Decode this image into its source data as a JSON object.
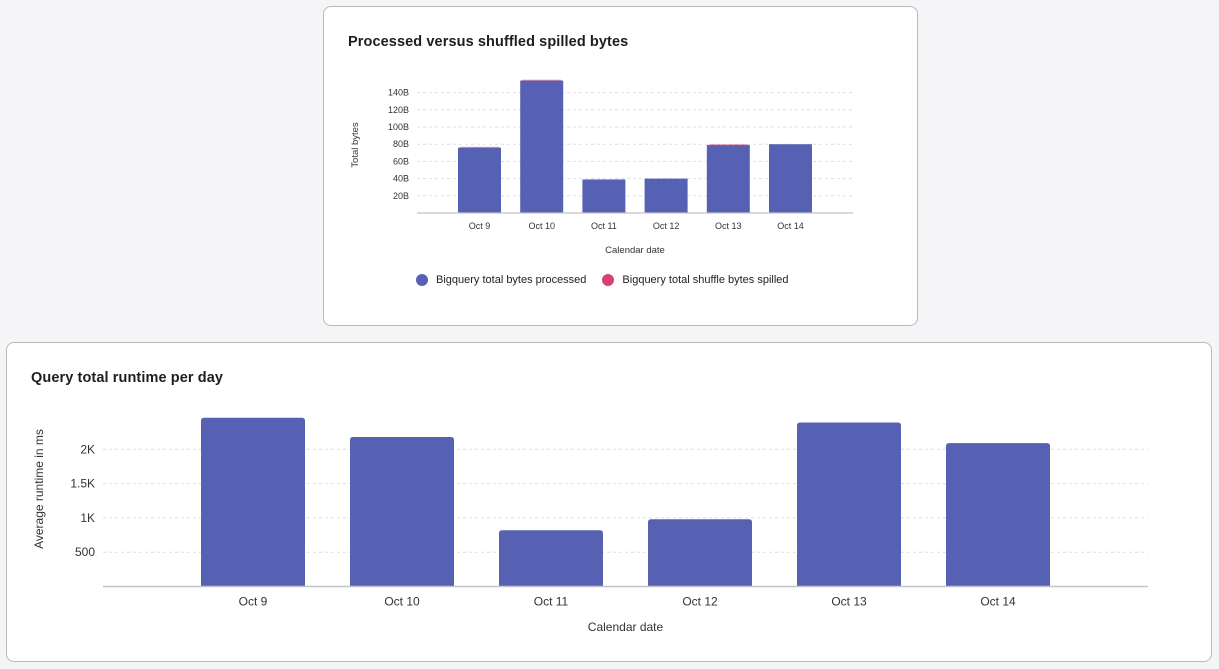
{
  "colors": {
    "processed": "#5661b3",
    "spilled": "#d6416f",
    "grid": "#dedee3",
    "axis": "#c4c4c8"
  },
  "chart_data": [
    {
      "type": "bar",
      "stacked": true,
      "title": "Processed versus shuffled spilled bytes",
      "xlabel": "Calendar date",
      "ylabel": "Total bytes",
      "categories": [
        "Oct 9",
        "Oct 10",
        "Oct 11",
        "Oct 12",
        "Oct 13",
        "Oct 14"
      ],
      "series": [
        {
          "name": "Bigquery total bytes processed",
          "values": [
            76,
            154,
            39,
            40,
            79,
            80
          ]
        },
        {
          "name": "Bigquery total shuffle bytes spilled",
          "values": [
            1,
            1,
            0,
            0,
            1,
            0
          ]
        }
      ],
      "yticks": [
        20,
        40,
        60,
        80,
        100,
        120,
        140
      ],
      "ytick_labels": [
        "20B",
        "40B",
        "60B",
        "80B",
        "100B",
        "120B",
        "140B"
      ],
      "ylim": [
        0,
        155
      ],
      "unit": "B",
      "grid": true,
      "legend_position": "bottom"
    },
    {
      "type": "bar",
      "title": "Query total runtime per day",
      "xlabel": "Calendar date",
      "ylabel": "Average runtime in ms",
      "categories": [
        "Oct 9",
        "Oct 10",
        "Oct 11",
        "Oct 12",
        "Oct 13",
        "Oct 14"
      ],
      "values": [
        2460,
        2180,
        820,
        980,
        2390,
        2090
      ],
      "yticks": [
        500,
        1000,
        1500,
        2000
      ],
      "ytick_labels": [
        "500",
        "1K",
        "1.5K",
        "2K"
      ],
      "ylim": [
        0,
        2460
      ],
      "grid": true
    }
  ]
}
